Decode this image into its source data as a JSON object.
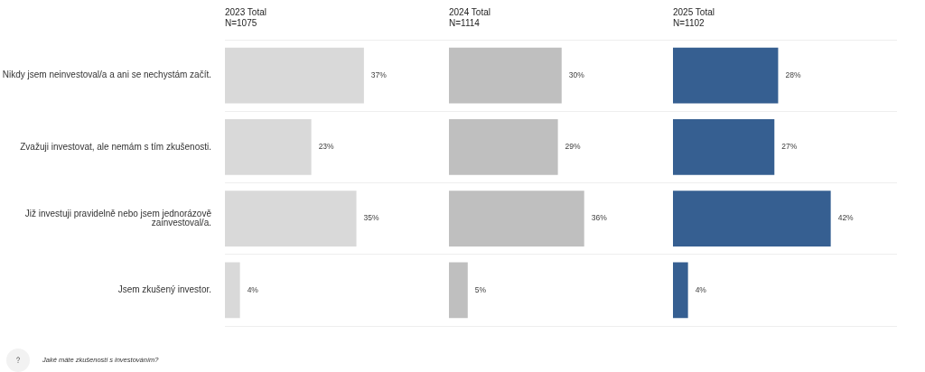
{
  "chart_data": [
    {
      "type": "bar",
      "orientation": "horizontal",
      "title": "2023 Total",
      "subtitle": "N=1075",
      "categories": [
        "Nikdy jsem neinvestoval/a a ani se nechystám začít.",
        "Zvažuji investovat, ale nemám s tím zkušenosti.",
        "Již investuji pravidelně nebo jsem jednorázově zainvestoval/a.",
        "Jsem zkušený investor."
      ],
      "values": [
        37,
        23,
        35,
        4
      ],
      "color": "#d9d9d9",
      "value_labels": [
        "37%",
        "23%",
        "35%",
        "4%"
      ],
      "grid": "y",
      "tick_labels": "y",
      "annotations": [
        "Jaké máte zkušenosti s investováním?"
      ]
    },
    {
      "type": "bar",
      "orientation": "horizontal",
      "title": "2024 Total",
      "subtitle": "N=1114",
      "categories": [
        null,
        null,
        null,
        null
      ],
      "values": [
        30,
        29,
        36,
        5
      ],
      "color": "#bfbfbf",
      "value_labels": [
        "30%",
        "29%",
        "36%",
        "5%"
      ],
      "grid": "y",
      "tick_labels": false
    },
    {
      "type": "bar",
      "orientation": "horizontal",
      "title": "2025 Total",
      "subtitle": "N=1102",
      "categories": [
        null,
        null,
        null,
        null
      ],
      "values": [
        28,
        27,
        42,
        4
      ],
      "color": "#365f91",
      "value_labels": [
        "28%",
        "27%",
        "42%",
        "4%"
      ],
      "grid": "y",
      "tick_labels": false
    }
  ]
}
